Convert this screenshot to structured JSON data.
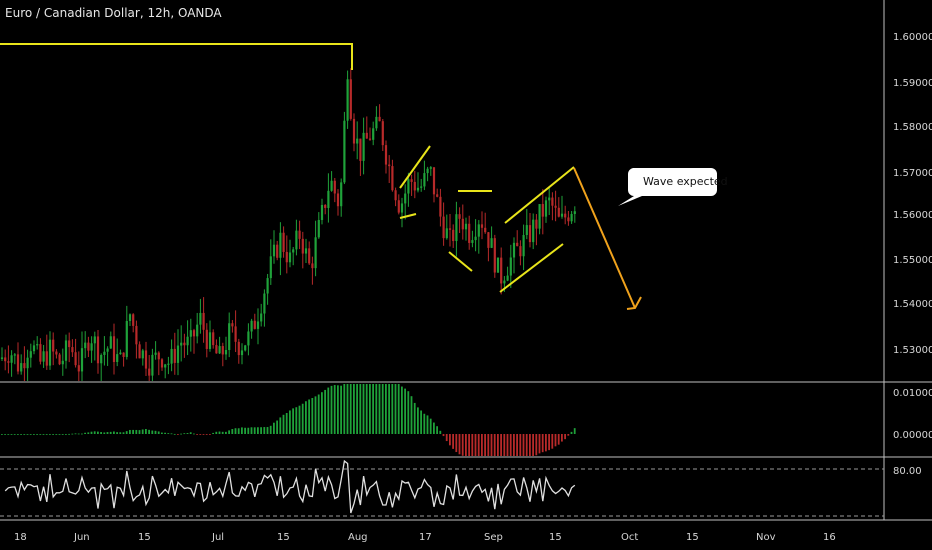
{
  "header": {
    "title": "Euro / Canadian Dollar, 12h, OANDA"
  },
  "colors": {
    "bull": "#1fa23a",
    "bear": "#b82a2a",
    "drawing": "#e8e41a",
    "projection": "#f0a21c",
    "rsi_line": "#e0e0e0",
    "separator": "#bfbfbf"
  },
  "chart_data": [
    {
      "type": "candlestick",
      "symbol": "EURCAD",
      "title": "Euro / Canadian Dollar, 12h, OANDA",
      "ylim": [
        1.522,
        1.608
      ],
      "y_ticks": [
        "1.60000",
        "1.59000",
        "1.58000",
        "1.57000",
        "1.56000",
        "1.55000",
        "1.54000",
        "1.53000"
      ],
      "x_ticks": [
        "18",
        "Jun",
        "15",
        "Jul",
        "15",
        "Aug",
        "17",
        "Sep",
        "15",
        "Oct",
        "15",
        "Nov",
        "16"
      ],
      "close_path": [
        [
          0,
          1.528
        ],
        [
          10,
          1.53
        ],
        [
          20,
          1.526
        ],
        [
          30,
          1.532
        ],
        [
          40,
          1.527
        ],
        [
          50,
          1.53
        ],
        [
          60,
          1.527
        ],
        [
          70,
          1.531
        ],
        [
          80,
          1.526
        ],
        [
          90,
          1.534
        ],
        [
          100,
          1.529
        ],
        [
          110,
          1.531
        ],
        [
          120,
          1.527
        ],
        [
          130,
          1.538
        ],
        [
          140,
          1.53
        ],
        [
          150,
          1.527
        ],
        [
          160,
          1.529
        ],
        [
          170,
          1.527
        ],
        [
          180,
          1.532
        ],
        [
          190,
          1.531
        ],
        [
          200,
          1.537
        ],
        [
          210,
          1.531
        ],
        [
          220,
          1.528
        ],
        [
          230,
          1.534
        ],
        [
          240,
          1.531
        ],
        [
          250,
          1.533
        ],
        [
          260,
          1.54
        ],
        [
          270,
          1.548
        ],
        [
          280,
          1.555
        ],
        [
          290,
          1.55
        ],
        [
          300,
          1.556
        ],
        [
          310,
          1.548
        ],
        [
          320,
          1.558
        ],
        [
          330,
          1.568
        ],
        [
          340,
          1.562
        ],
        [
          348,
          1.595
        ],
        [
          352,
          1.58
        ],
        [
          360,
          1.574
        ],
        [
          370,
          1.578
        ],
        [
          380,
          1.58
        ],
        [
          390,
          1.57
        ],
        [
          400,
          1.562
        ],
        [
          410,
          1.568
        ],
        [
          420,
          1.566
        ],
        [
          430,
          1.57
        ],
        [
          440,
          1.56
        ],
        [
          450,
          1.554
        ],
        [
          460,
          1.56
        ],
        [
          470,
          1.556
        ],
        [
          480,
          1.56
        ],
        [
          490,
          1.554
        ],
        [
          500,
          1.546
        ],
        [
          510,
          1.55
        ],
        [
          520,
          1.553
        ],
        [
          530,
          1.556
        ],
        [
          540,
          1.56
        ],
        [
          550,
          1.563
        ],
        [
          560,
          1.558
        ],
        [
          575,
          1.563
        ]
      ],
      "annotations": {
        "callout": "Wave expected",
        "resistance_level": 1.5985,
        "projection_target": 1.539
      }
    },
    {
      "type": "histogram",
      "name": "oscillator",
      "y_ticks": [
        "0.01000",
        "0.00000"
      ],
      "ylim": [
        -0.003,
        0.011
      ]
    },
    {
      "type": "line",
      "name": "oscillator-line",
      "y_ticks": [
        "80.00"
      ],
      "ylim": [
        45,
        95
      ]
    }
  ]
}
